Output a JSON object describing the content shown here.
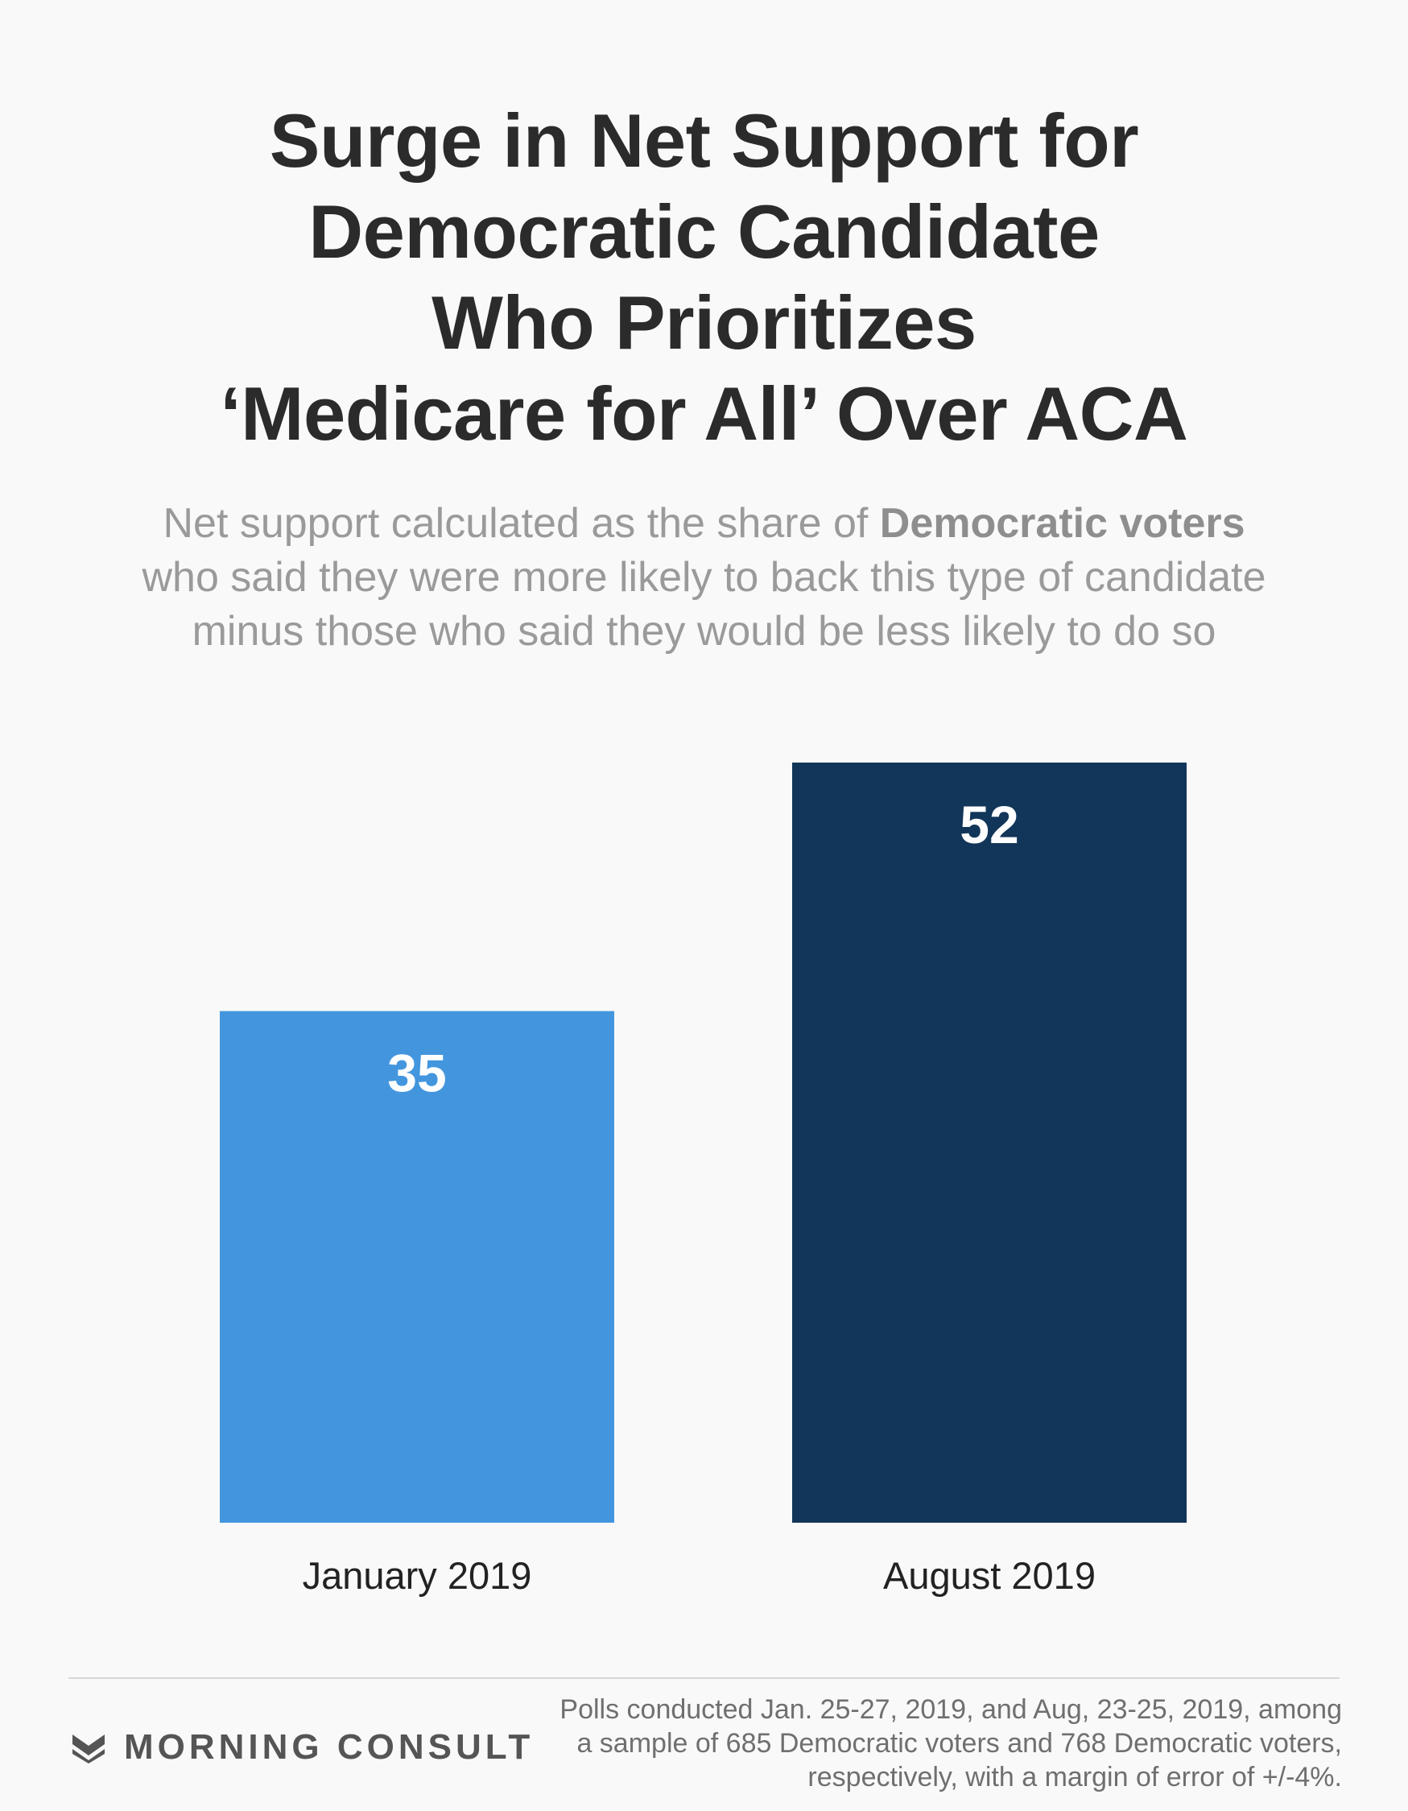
{
  "title_lines": [
    "Surge in Net Support for",
    "Democratic Candidate",
    "Who Prioritizes",
    "‘Medicare for All’ Over ACA"
  ],
  "subtitle": {
    "line1_before": "Net support calculated as the share of ",
    "line1_bold": "Democratic voters",
    "line2": "who said they were more likely to back this type of candidate",
    "line3": "minus those who said they would be less likely to do so"
  },
  "chart_data": {
    "type": "bar",
    "categories": [
      "January 2019",
      "August 2019"
    ],
    "values": [
      35,
      52
    ],
    "data_labels": [
      "35",
      "52"
    ],
    "colors": [
      "#4396de",
      "#123659"
    ],
    "title": "Surge in Net Support for Democratic Candidate Who Prioritizes ‘Medicare for All’ Over ACA",
    "xlabel": "",
    "ylabel": "",
    "ylim": [
      0,
      52
    ],
    "grid": false,
    "legend": "none"
  },
  "footer": {
    "brand": "MORNING CONSULT",
    "logo_icon": "morning-consult-chevron-icon",
    "note_lines": [
      "Polls conducted Jan. 25-27, 2019, and Aug, 23-25, 2019, among",
      "a sample of 685 Democratic voters and 768 Democratic voters,",
      "respectively, with a margin of error of +/-4%."
    ]
  },
  "colors": {
    "background": "#f9f9f9",
    "title": "#2b2b2b",
    "subtitle": "#9a9a9a",
    "label": "#222222",
    "bar_label": "#ffffff"
  }
}
